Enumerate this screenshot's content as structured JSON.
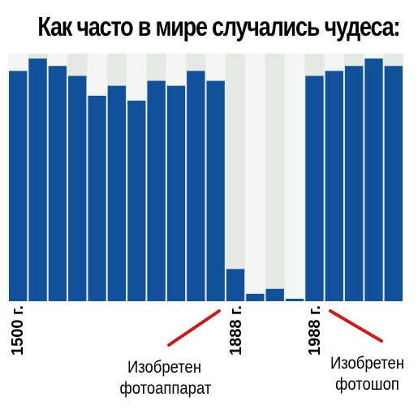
{
  "title": "Как часто в мире случались чудеса:",
  "chart_data": {
    "type": "bar",
    "values": [
      0.93,
      0.98,
      0.95,
      0.91,
      0.83,
      0.87,
      0.81,
      0.89,
      0.87,
      0.93,
      0.89,
      0.13,
      0.03,
      0.05,
      0.01,
      0.91,
      0.93,
      0.95,
      0.98,
      0.95
    ],
    "x_tick_labels": [
      "1500 г.",
      "1888 г.",
      "1988 г."
    ],
    "ylim": [
      0,
      1
    ],
    "colors": {
      "bar": "#11519a",
      "band_light": "#f4f6f3",
      "band_dark": "#e5e9e4",
      "arrow": "#d31a1a"
    },
    "annotations": [
      {
        "text_line1": "Изобретен",
        "text_line2": "фотоаппарат",
        "points_to": "1888 г."
      },
      {
        "text_line1": "Изобретен",
        "text_line2": "фотошоп",
        "points_to": "1988 г."
      }
    ]
  }
}
